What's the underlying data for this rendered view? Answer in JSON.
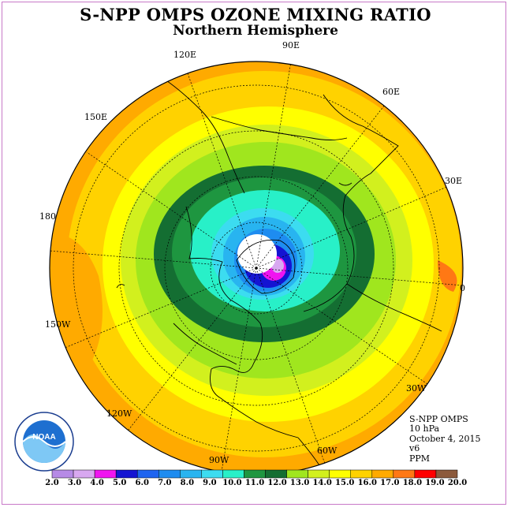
{
  "title": "S-NPP OMPS OZONE MIXING RATIO",
  "subtitle": "Northern Hemisphere",
  "longitude_labels": [
    "90E",
    "60E",
    "30E",
    "0",
    "30W",
    "60W",
    "90W",
    "120W",
    "150W",
    "180",
    "150E",
    "120E"
  ],
  "info": {
    "instrument": "S-NPP OMPS",
    "pressure": "10 hPa",
    "date": "October 4, 2015",
    "version": "v6",
    "units": "PPM"
  },
  "logo": {
    "text": "NOAA",
    "ring_text": "NATIONAL OCEANIC AND ATMOSPHERIC ADMINISTRATION · U.S. DEPARTMENT OF COMMERCE"
  },
  "colorbar": {
    "labels": [
      "2.0",
      "3.0",
      "4.0",
      "5.0",
      "6.0",
      "7.0",
      "8.0",
      "9.0",
      "10.0",
      "11.0",
      "12.0",
      "13.0",
      "14.0",
      "15.0",
      "16.0",
      "17.0",
      "18.0",
      "19.0",
      "20.0"
    ],
    "colors": [
      "#b68ae6",
      "#d8a8f0",
      "#f014f0",
      "#1414d2",
      "#1e64f0",
      "#1e8cf0",
      "#28b4f0",
      "#3cdcf0",
      "#28f0c8",
      "#1e9640",
      "#146e32",
      "#a0e61e",
      "#d2f01e",
      "#ffff00",
      "#ffd200",
      "#ffaa00",
      "#ff7814",
      "#ff0000",
      "#8c5a3c"
    ]
  }
}
